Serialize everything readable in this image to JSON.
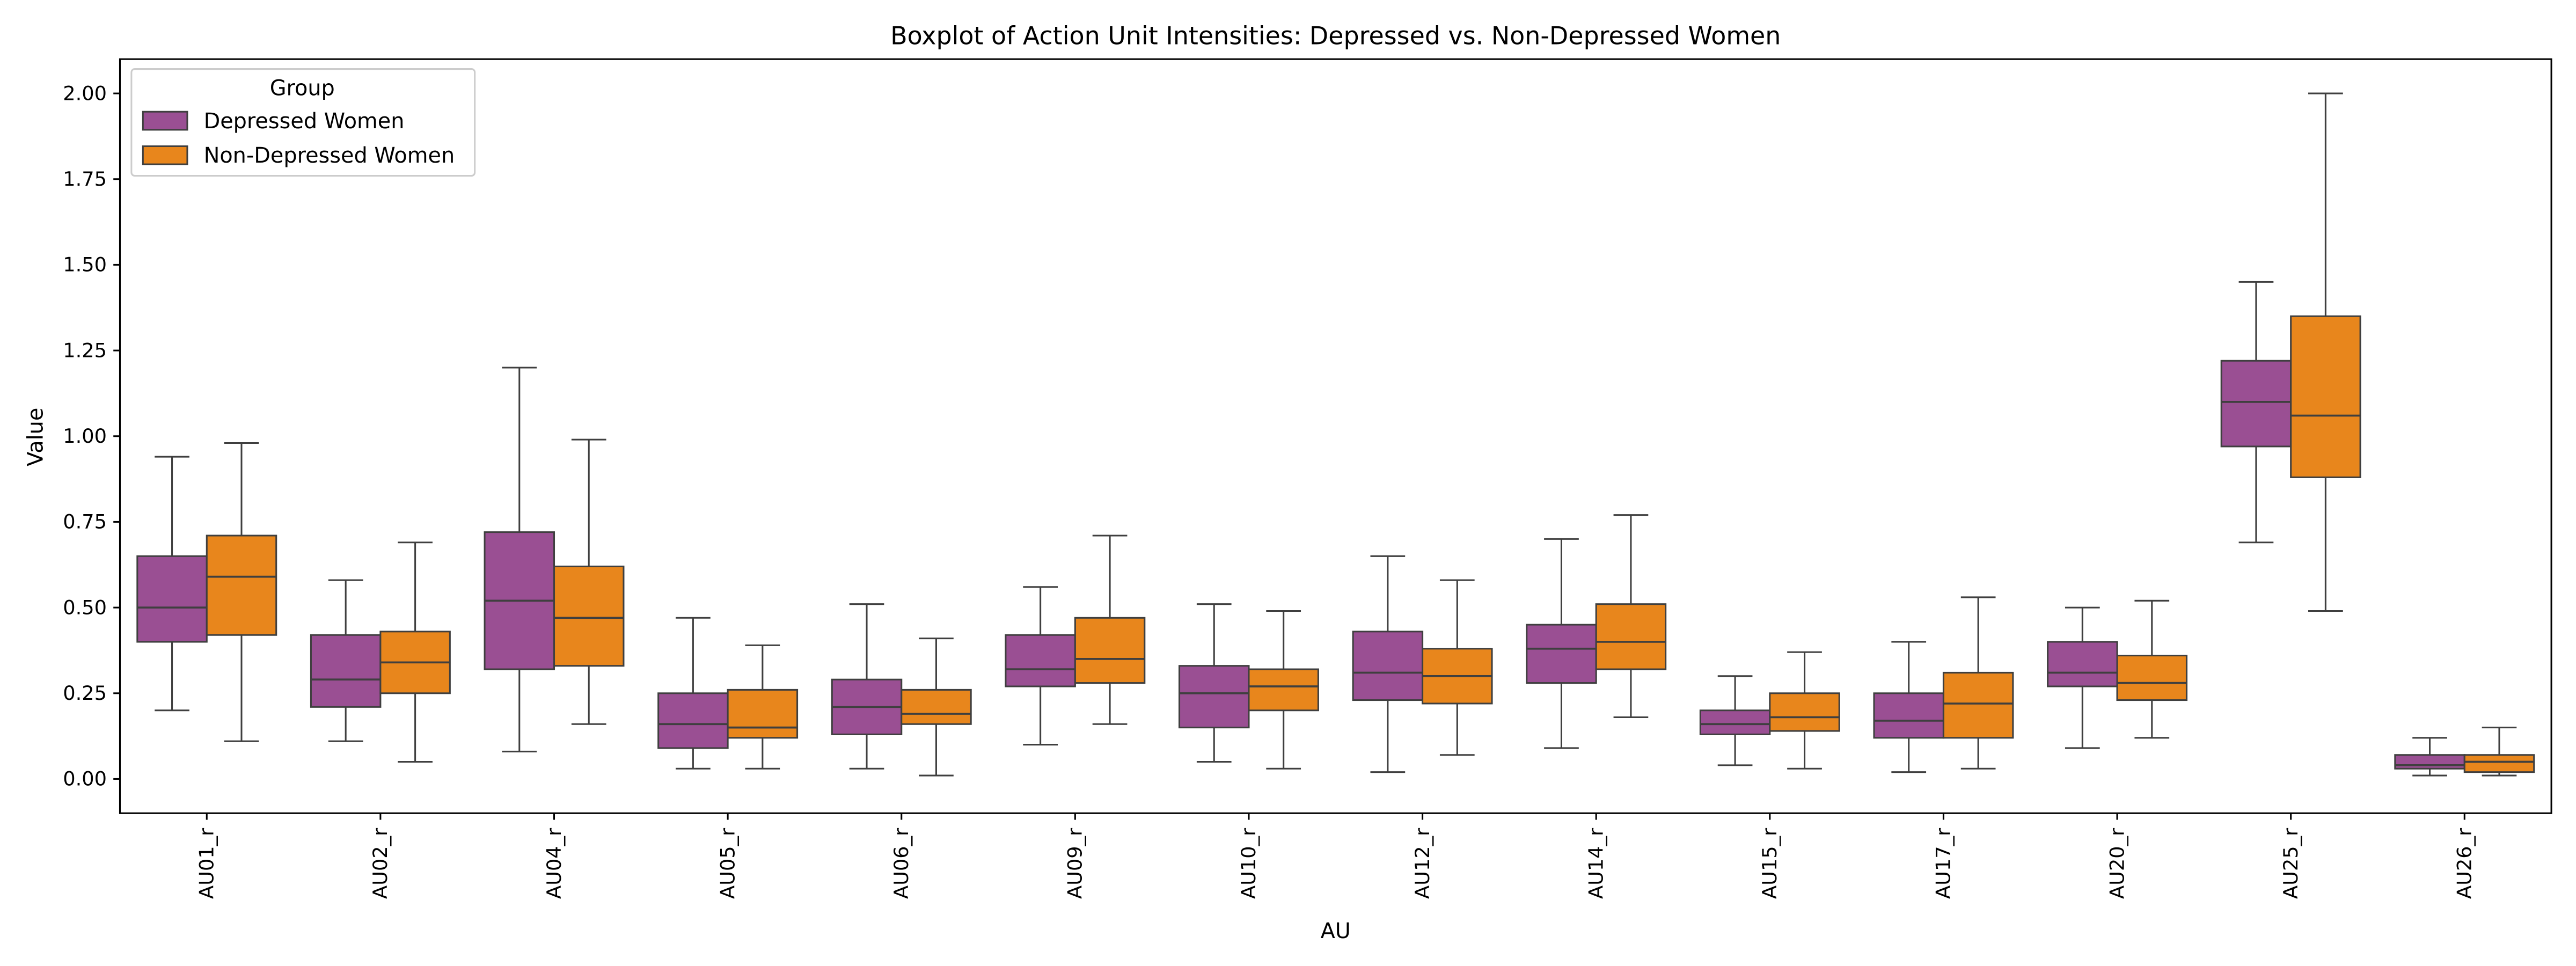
{
  "chart_data": {
    "type": "boxplot",
    "title": "Boxplot of Action Unit Intensities: Depressed vs. Non-Depressed Women",
    "xlabel": "AU",
    "ylabel": "Value",
    "ylim": [
      -0.1,
      2.1
    ],
    "yticks": [
      0.0,
      0.25,
      0.5,
      0.75,
      1.0,
      1.25,
      1.5,
      1.75,
      2.0
    ],
    "ytick_labels": [
      "0.00",
      "0.25",
      "0.50",
      "0.75",
      "1.00",
      "1.25",
      "1.50",
      "1.75",
      "2.00"
    ],
    "grid": false,
    "legend": {
      "title": "Group",
      "placement": "top-left"
    },
    "categories": [
      "AU01_r",
      "AU02_r",
      "AU04_r",
      "AU05_r",
      "AU06_r",
      "AU09_r",
      "AU10_r",
      "AU12_r",
      "AU14_r",
      "AU15_r",
      "AU17_r",
      "AU20_r",
      "AU25_r",
      "AU26_r"
    ],
    "series": [
      {
        "name": "Depressed Women",
        "color": "#9a4f93",
        "boxes": [
          {
            "whislo": 0.2,
            "q1": 0.4,
            "med": 0.5,
            "q3": 0.65,
            "whishi": 0.94
          },
          {
            "whislo": 0.11,
            "q1": 0.21,
            "med": 0.29,
            "q3": 0.42,
            "whishi": 0.58
          },
          {
            "whislo": 0.08,
            "q1": 0.32,
            "med": 0.52,
            "q3": 0.72,
            "whishi": 1.2
          },
          {
            "whislo": 0.03,
            "q1": 0.09,
            "med": 0.16,
            "q3": 0.25,
            "whishi": 0.47
          },
          {
            "whislo": 0.03,
            "q1": 0.13,
            "med": 0.21,
            "q3": 0.29,
            "whishi": 0.51
          },
          {
            "whislo": 0.1,
            "q1": 0.27,
            "med": 0.32,
            "q3": 0.42,
            "whishi": 0.56
          },
          {
            "whislo": 0.05,
            "q1": 0.15,
            "med": 0.25,
            "q3": 0.33,
            "whishi": 0.51
          },
          {
            "whislo": 0.02,
            "q1": 0.23,
            "med": 0.31,
            "q3": 0.43,
            "whishi": 0.65
          },
          {
            "whislo": 0.09,
            "q1": 0.28,
            "med": 0.38,
            "q3": 0.45,
            "whishi": 0.7
          },
          {
            "whislo": 0.04,
            "q1": 0.13,
            "med": 0.16,
            "q3": 0.2,
            "whishi": 0.3
          },
          {
            "whislo": 0.02,
            "q1": 0.12,
            "med": 0.17,
            "q3": 0.25,
            "whishi": 0.4
          },
          {
            "whislo": 0.09,
            "q1": 0.27,
            "med": 0.31,
            "q3": 0.4,
            "whishi": 0.5
          },
          {
            "whislo": 0.69,
            "q1": 0.97,
            "med": 1.1,
            "q3": 1.22,
            "whishi": 1.45
          },
          {
            "whislo": 0.01,
            "q1": 0.03,
            "med": 0.04,
            "q3": 0.07,
            "whishi": 0.12
          }
        ]
      },
      {
        "name": "Non-Depressed Women",
        "color": "#e8861c",
        "boxes": [
          {
            "whislo": 0.11,
            "q1": 0.42,
            "med": 0.59,
            "q3": 0.71,
            "whishi": 0.98
          },
          {
            "whislo": 0.05,
            "q1": 0.25,
            "med": 0.34,
            "q3": 0.43,
            "whishi": 0.69
          },
          {
            "whislo": 0.16,
            "q1": 0.33,
            "med": 0.47,
            "q3": 0.62,
            "whishi": 0.99
          },
          {
            "whislo": 0.03,
            "q1": 0.12,
            "med": 0.15,
            "q3": 0.26,
            "whishi": 0.39
          },
          {
            "whislo": 0.01,
            "q1": 0.16,
            "med": 0.19,
            "q3": 0.26,
            "whishi": 0.41
          },
          {
            "whislo": 0.16,
            "q1": 0.28,
            "med": 0.35,
            "q3": 0.47,
            "whishi": 0.71
          },
          {
            "whislo": 0.03,
            "q1": 0.2,
            "med": 0.27,
            "q3": 0.32,
            "whishi": 0.49
          },
          {
            "whislo": 0.07,
            "q1": 0.22,
            "med": 0.3,
            "q3": 0.38,
            "whishi": 0.58
          },
          {
            "whislo": 0.18,
            "q1": 0.32,
            "med": 0.4,
            "q3": 0.51,
            "whishi": 0.77
          },
          {
            "whislo": 0.03,
            "q1": 0.14,
            "med": 0.18,
            "q3": 0.25,
            "whishi": 0.37
          },
          {
            "whislo": 0.03,
            "q1": 0.12,
            "med": 0.22,
            "q3": 0.31,
            "whishi": 0.53
          },
          {
            "whislo": 0.12,
            "q1": 0.23,
            "med": 0.28,
            "q3": 0.36,
            "whishi": 0.52
          },
          {
            "whislo": 0.49,
            "q1": 0.88,
            "med": 1.06,
            "q3": 1.35,
            "whishi": 2.0
          },
          {
            "whislo": 0.01,
            "q1": 0.02,
            "med": 0.05,
            "q3": 0.07,
            "whishi": 0.15
          }
        ]
      }
    ]
  }
}
